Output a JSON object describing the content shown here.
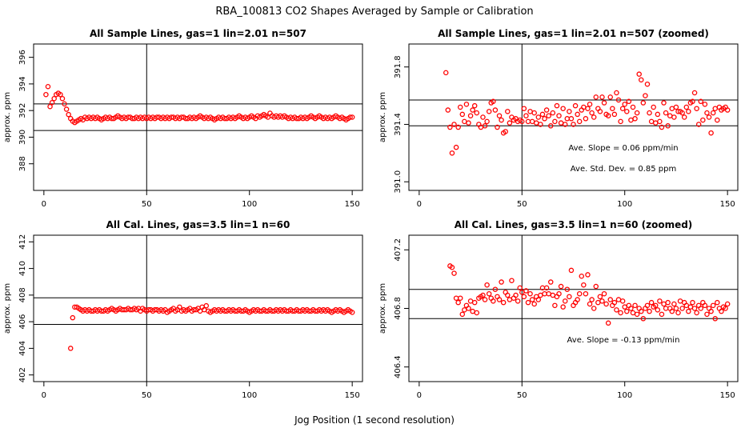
{
  "figure": {
    "title": "RBA_100813  CO2 Shapes Averaged by Sample or Calibration",
    "xlabel": "Jog Position (1 second resolution)",
    "marker_color": "#ff0000"
  },
  "chart_data": [
    {
      "type": "scatter",
      "title": "All Sample Lines, gas=1 lin=2.01 n=507",
      "ylabel": "approx. ppm",
      "xlim": [
        -5,
        155
      ],
      "ylim": [
        386.0,
        397.0
      ],
      "xticks": [
        0,
        50,
        100,
        150
      ],
      "yticks": [
        388,
        390,
        392,
        394,
        396
      ],
      "vline": 50,
      "hlines": [
        390.5,
        392.5
      ],
      "annotations": [],
      "x_start": 1,
      "values": [
        393.2,
        393.8,
        392.3,
        392.6,
        392.9,
        393.2,
        393.3,
        393.2,
        392.9,
        392.5,
        392.1,
        391.7,
        391.4,
        391.2,
        391.1,
        391.2,
        391.3,
        391.4,
        391.3,
        391.5,
        391.4,
        391.5,
        391.4,
        391.5,
        391.4,
        391.5,
        391.4,
        391.3,
        391.4,
        391.5,
        391.4,
        391.5,
        391.4,
        391.4,
        391.5,
        391.6,
        391.5,
        391.4,
        391.5,
        391.4,
        391.5,
        391.5,
        391.4,
        391.4,
        391.5,
        391.4,
        391.5,
        391.4,
        391.5,
        391.4,
        391.5,
        391.4,
        391.5,
        391.4,
        391.5,
        391.5,
        391.4,
        391.5,
        391.4,
        391.5,
        391.4,
        391.5,
        391.5,
        391.4,
        391.5,
        391.4,
        391.5,
        391.5,
        391.4,
        391.4,
        391.5,
        391.4,
        391.5,
        391.4,
        391.5,
        391.6,
        391.5,
        391.4,
        391.5,
        391.4,
        391.5,
        391.4,
        391.3,
        391.4,
        391.5,
        391.4,
        391.5,
        391.4,
        391.4,
        391.5,
        391.4,
        391.5,
        391.4,
        391.5,
        391.6,
        391.5,
        391.4,
        391.5,
        391.4,
        391.5,
        391.6,
        391.5,
        391.4,
        391.6,
        391.5,
        391.6,
        391.7,
        391.6,
        391.5,
        391.8,
        391.6,
        391.5,
        391.6,
        391.5,
        391.6,
        391.5,
        391.6,
        391.5,
        391.4,
        391.5,
        391.4,
        391.5,
        391.4,
        391.4,
        391.5,
        391.4,
        391.5,
        391.4,
        391.5,
        391.6,
        391.5,
        391.4,
        391.5,
        391.6,
        391.5,
        391.4,
        391.5,
        391.4,
        391.5,
        391.4,
        391.5,
        391.6,
        391.5,
        391.4,
        391.5,
        391.4,
        391.3,
        391.4,
        391.5,
        391.5
      ]
    },
    {
      "type": "scatter",
      "title": "All Sample Lines, gas=1 lin=2.01 n=507 (zoomed)",
      "ylabel": "approx. ppm",
      "xlim": [
        -5,
        155
      ],
      "ylim": [
        390.94,
        391.96
      ],
      "xticks": [
        0,
        50,
        100,
        150
      ],
      "yticks": [
        391.0,
        391.4,
        391.8
      ],
      "vline": 50,
      "hlines": [
        391.39,
        391.57
      ],
      "annotations": [
        "Ave. Slope =  0.06  ppm/min",
        "Ave. Std. Dev. =  0.85  ppm"
      ],
      "x_start": 13,
      "values": [
        391.76,
        391.5,
        391.38,
        391.2,
        391.4,
        391.24,
        391.38,
        391.52,
        391.47,
        391.42,
        391.54,
        391.41,
        391.46,
        391.5,
        391.53,
        391.48,
        391.4,
        391.38,
        391.45,
        391.39,
        391.42,
        391.49,
        391.55,
        391.56,
        391.5,
        391.38,
        391.46,
        391.43,
        391.34,
        391.35,
        391.49,
        391.41,
        391.45,
        391.43,
        391.44,
        391.42,
        391.43,
        391.42,
        391.51,
        391.46,
        391.42,
        391.49,
        391.42,
        391.48,
        391.41,
        391.45,
        391.4,
        391.47,
        391.44,
        391.5,
        391.46,
        391.39,
        391.48,
        391.42,
        391.53,
        391.46,
        391.41,
        391.51,
        391.4,
        391.44,
        391.49,
        391.44,
        391.4,
        391.53,
        391.47,
        391.42,
        391.5,
        391.52,
        391.44,
        391.51,
        391.54,
        391.48,
        391.45,
        391.59,
        391.51,
        391.49,
        391.59,
        391.55,
        391.47,
        391.46,
        391.59,
        391.51,
        391.47,
        391.62,
        391.57,
        391.42,
        391.51,
        391.54,
        391.49,
        391.56,
        391.43,
        391.52,
        391.44,
        391.48,
        391.75,
        391.71,
        391.55,
        391.6,
        391.68,
        391.48,
        391.42,
        391.52,
        391.41,
        391.47,
        391.42,
        391.38,
        391.55,
        391.48,
        391.39,
        391.46,
        391.51,
        391.45,
        391.52,
        391.49,
        391.49,
        391.48,
        391.45,
        391.52,
        391.49,
        391.55,
        391.56,
        391.62,
        391.51,
        391.4,
        391.56,
        391.43,
        391.54,
        391.48,
        391.45,
        391.34,
        391.48,
        391.51,
        391.43,
        391.52,
        391.5,
        391.51,
        391.52,
        391.5
      ]
    },
    {
      "type": "scatter",
      "title": "All Cal. Lines, gas=3.5 lin=1 n=60",
      "ylabel": "approx. ppm",
      "xlim": [
        -5,
        155
      ],
      "ylim": [
        401.5,
        412.5
      ],
      "xticks": [
        0,
        50,
        100,
        150
      ],
      "yticks": [
        402,
        404,
        406,
        408,
        410,
        412
      ],
      "vline": 50,
      "hlines": [
        405.8,
        407.8
      ],
      "annotations": [],
      "x_start": 13,
      "values": [
        404.0,
        406.3,
        407.1,
        407.1,
        407.0,
        406.9,
        406.8,
        406.9,
        406.8,
        406.9,
        406.8,
        406.8,
        406.9,
        406.8,
        406.9,
        406.8,
        406.8,
        406.9,
        406.8,
        406.9,
        407.0,
        406.9,
        406.8,
        406.9,
        407.0,
        406.9,
        406.9,
        406.9,
        407.0,
        406.9,
        406.9,
        407.0,
        406.9,
        407.0,
        406.8,
        407.0,
        406.9,
        406.8,
        406.9,
        406.9,
        406.8,
        406.9,
        406.9,
        406.8,
        406.9,
        406.8,
        406.9,
        406.7,
        406.8,
        406.9,
        407.0,
        406.8,
        406.9,
        407.1,
        406.8,
        406.9,
        406.8,
        406.9,
        407.0,
        406.8,
        406.9,
        406.9,
        407.0,
        406.8,
        407.1,
        406.9,
        407.2,
        406.8,
        406.7,
        406.8,
        406.9,
        406.8,
        406.9,
        406.8,
        406.9,
        406.8,
        406.8,
        406.9,
        406.8,
        406.9,
        406.8,
        406.8,
        406.9,
        406.8,
        406.8,
        406.9,
        406.8,
        406.7,
        406.8,
        406.9,
        406.8,
        406.9,
        406.8,
        406.8,
        406.9,
        406.8,
        406.8,
        406.9,
        406.8,
        406.8,
        406.9,
        406.8,
        406.9,
        406.8,
        406.9,
        406.8,
        406.8,
        406.9,
        406.8,
        406.8,
        406.9,
        406.8,
        406.8,
        406.9,
        406.8,
        406.9,
        406.8,
        406.8,
        406.9,
        406.8,
        406.8,
        406.9,
        406.8,
        406.9,
        406.8,
        406.9,
        406.8,
        406.7,
        406.8,
        406.9,
        406.8,
        406.9,
        406.8,
        406.7,
        406.8,
        406.9,
        406.8,
        406.7
      ]
    },
    {
      "type": "scatter",
      "title": "All Cal. Lines, gas=3.5 lin=1 n=60 (zoomed)",
      "ylabel": "approx. ppm",
      "xlim": [
        -5,
        155
      ],
      "ylim": [
        406.3,
        407.3
      ],
      "xticks": [
        0,
        50,
        100,
        150
      ],
      "yticks": [
        406.4,
        406.8,
        407.2
      ],
      "vline": 50,
      "hlines": [
        406.73,
        406.93
      ],
      "annotations": [
        "Ave. Slope =  -0.13  ppm/min"
      ],
      "x_start": 15,
      "values": [
        407.09,
        407.08,
        407.04,
        406.87,
        406.84,
        406.87,
        406.76,
        406.79,
        406.82,
        406.8,
        406.85,
        406.78,
        406.84,
        406.77,
        406.87,
        406.88,
        406.89,
        406.86,
        406.96,
        406.9,
        406.87,
        406.85,
        406.93,
        406.88,
        406.86,
        406.98,
        406.84,
        406.91,
        406.89,
        406.86,
        406.99,
        406.87,
        406.89,
        406.85,
        406.94,
        406.91,
        406.88,
        406.92,
        406.84,
        406.9,
        406.86,
        406.83,
        406.88,
        406.86,
        406.89,
        406.94,
        406.9,
        406.94,
        406.9,
        406.98,
        406.89,
        406.82,
        406.88,
        406.9,
        406.95,
        406.81,
        406.85,
        406.93,
        406.88,
        407.06,
        406.82,
        406.84,
        406.86,
        406.9,
        407.02,
        406.96,
        406.9,
        407.03,
        406.83,
        406.86,
        406.8,
        406.95,
        406.84,
        406.88,
        406.85,
        406.9,
        406.83,
        406.7,
        406.86,
        406.82,
        406.84,
        406.79,
        406.86,
        406.77,
        406.85,
        406.81,
        406.78,
        406.82,
        406.8,
        406.77,
        406.82,
        406.76,
        406.8,
        406.78,
        406.73,
        406.8,
        406.82,
        406.78,
        406.84,
        406.81,
        406.82,
        406.79,
        406.85,
        406.76,
        406.83,
        406.8,
        406.84,
        406.8,
        406.78,
        406.83,
        406.8,
        406.77,
        406.85,
        406.8,
        406.84,
        406.82,
        406.78,
        406.81,
        406.84,
        406.8,
        406.77,
        406.82,
        406.8,
        406.84,
        406.82,
        406.76,
        406.8,
        406.78,
        406.82,
        406.73,
        406.84,
        406.8,
        406.78,
        406.81,
        406.8,
        406.83
      ]
    }
  ]
}
